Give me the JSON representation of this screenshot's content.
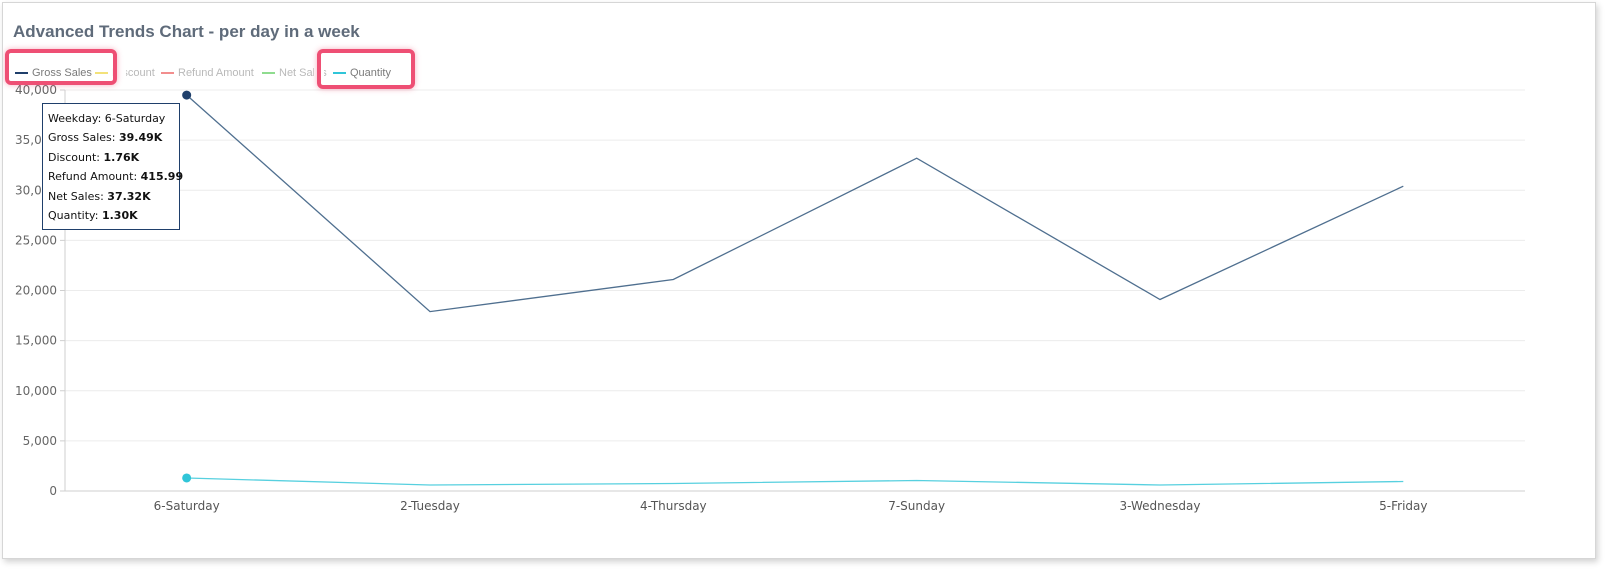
{
  "chart_title": "Advanced Trends Chart - per day in a week",
  "legend": [
    {
      "label": "Gross Sales",
      "color": "#1f3f6b",
      "active": true
    },
    {
      "label": "Discount",
      "color": "#f3e27a",
      "active": false
    },
    {
      "label": "Refund Amount",
      "color": "#f28e8e",
      "active": false
    },
    {
      "label": "Net Sales",
      "color": "#8fdc8f",
      "active": false
    },
    {
      "label": "Quantity",
      "color": "#30c5d8",
      "active": true
    }
  ],
  "toolbar": {
    "menu_icon": "hamburger-icon",
    "fullscreen_icon": "fullscreen-icon"
  },
  "tooltip": {
    "rows": [
      {
        "label": "Weekday:",
        "value": "6-Saturday"
      },
      {
        "label": "Gross Sales:",
        "value": "39.49K"
      },
      {
        "label": "Discount:",
        "value": "1.76K"
      },
      {
        "label": "Refund Amount:",
        "value": "415.99"
      },
      {
        "label": "Net Sales:",
        "value": "37.32K"
      },
      {
        "label": "Quantity:",
        "value": "1.30K"
      }
    ]
  },
  "chart_data": {
    "type": "line",
    "title": "Advanced Trends Chart - per day in a week",
    "categories": [
      "6-Saturday",
      "2-Tuesday",
      "4-Thursday",
      "7-Sunday",
      "3-Wednesday",
      "5-Friday"
    ],
    "y_ticks": [
      "0",
      "5,000",
      "10,000",
      "15,000",
      "20,000",
      "25,000",
      "30,000",
      "35,000",
      "40,000"
    ],
    "ylim": [
      0,
      40000
    ],
    "grid": true,
    "legend_position": "top-left",
    "highlighted_category": "6-Saturday",
    "series": [
      {
        "name": "Gross Sales",
        "color": "#4f6f8f",
        "marker_color": "#1f3f6b",
        "values": [
          39490,
          17900,
          21100,
          33200,
          19100,
          30400
        ]
      },
      {
        "name": "Quantity",
        "color": "#57d0df",
        "marker_color": "#30c5d8",
        "values": [
          1300,
          600,
          750,
          1050,
          600,
          950
        ]
      }
    ]
  }
}
